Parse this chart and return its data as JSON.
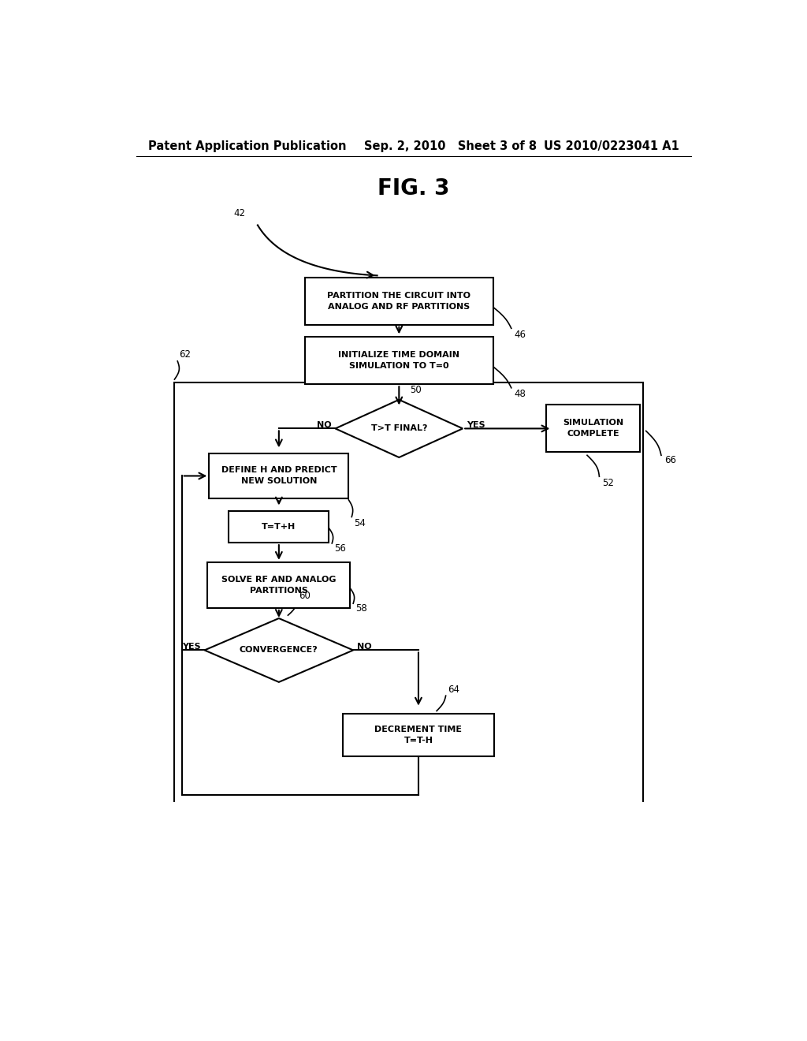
{
  "title": "FIG. 3",
  "header_left": "Patent Application Publication",
  "header_mid": "Sep. 2, 2010   Sheet 3 of 8",
  "header_right": "US 2010/0223041 A1",
  "bg_color": "#ffffff",
  "box1_text": "PARTITION THE CIRCUIT INTO\nANALOG AND RF PARTITIONS",
  "box2_text": "INITIALIZE TIME DOMAIN\nSIMULATION TO T=0",
  "diamond1_text": "T>T FINAL?",
  "box3_text": "DEFINE H AND PREDICT\nNEW SOLUTION",
  "box4_text": "T=T+H",
  "box5_text": "SOLVE RF AND ANALOG\nPARTITIONS",
  "diamond2_text": "CONVERGENCE?",
  "box6_text": "SIMULATION\nCOMPLETE",
  "box7_text": "DECREMENT TIME\nT=T-H",
  "label_42": "42",
  "label_46": "46",
  "label_48": "48",
  "label_50": "50",
  "label_52": "52",
  "label_54": "54",
  "label_56": "56",
  "label_58": "58",
  "label_60": "60",
  "label_62": "62",
  "label_64": "64",
  "label_66": "66",
  "yes_label": "YES",
  "no_label": "NO",
  "font_size_header": 10.5,
  "font_size_title": 20,
  "font_size_box": 8,
  "font_size_label": 8.5
}
